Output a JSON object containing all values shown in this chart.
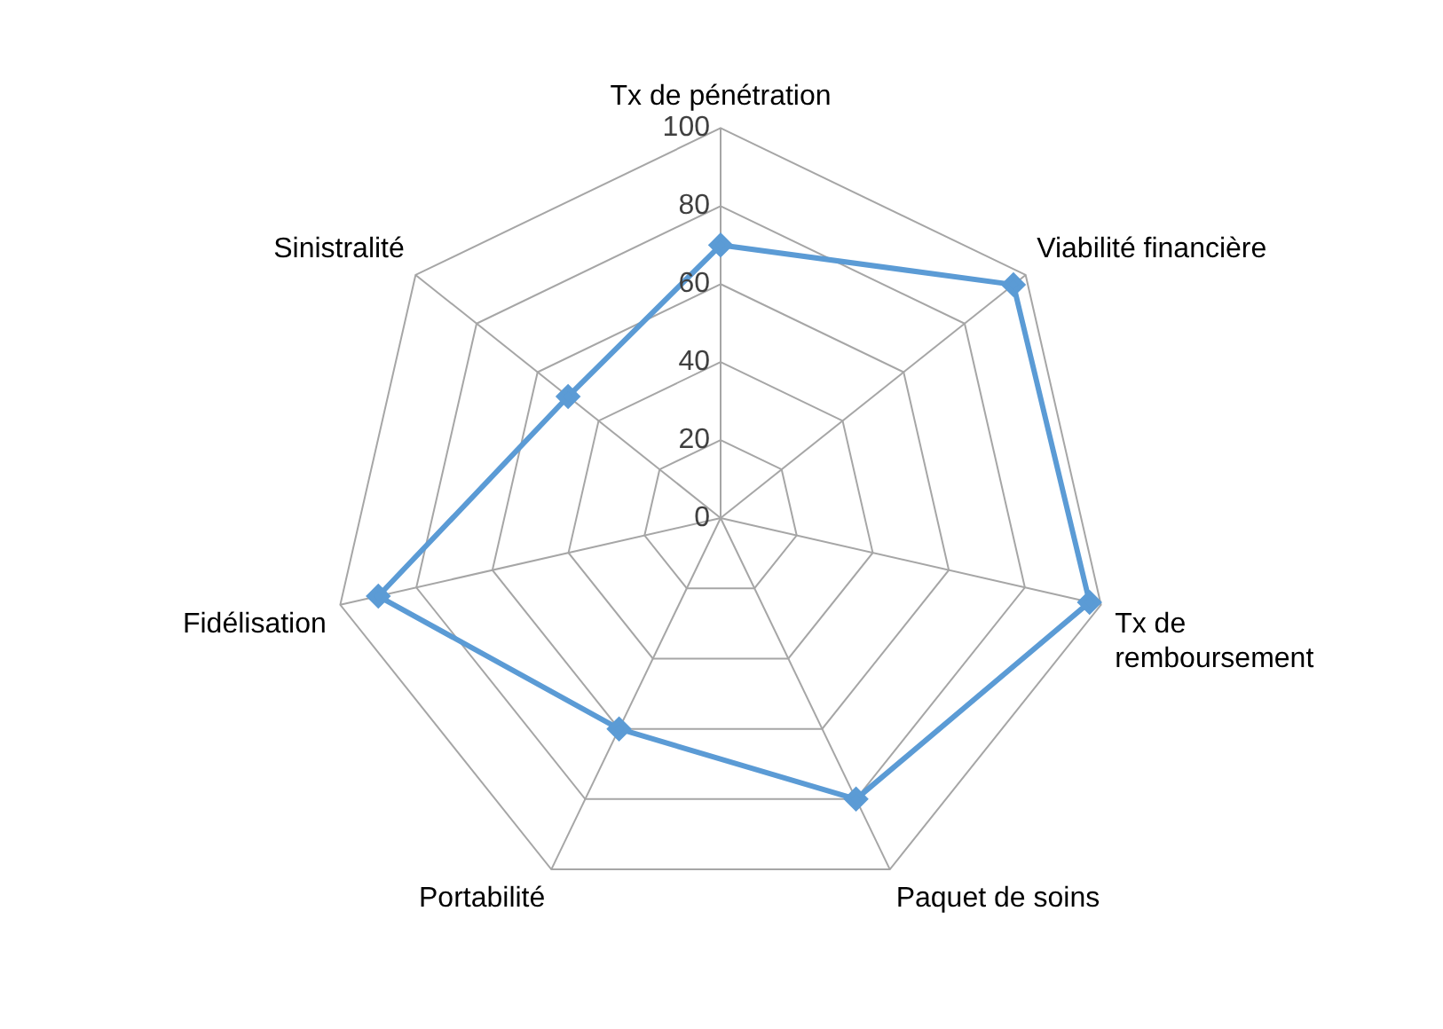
{
  "chart_data": {
    "type": "radar",
    "categories": [
      "Tx de pénétration",
      "Viabilité financière",
      "Tx de\nremboursement",
      "Paquet de soins",
      "Portabilité",
      "Fidélisation",
      "Sinistralité"
    ],
    "series": [
      {
        "color": "#5b9bd5",
        "values": [
          70,
          96,
          97,
          80,
          60,
          90,
          50
        ]
      }
    ],
    "ylim": [
      0,
      100
    ],
    "yticks": [
      0,
      20,
      40,
      60,
      80,
      100
    ],
    "grid": true,
    "legend": false,
    "marker": "diamond",
    "line_style": "solid"
  }
}
